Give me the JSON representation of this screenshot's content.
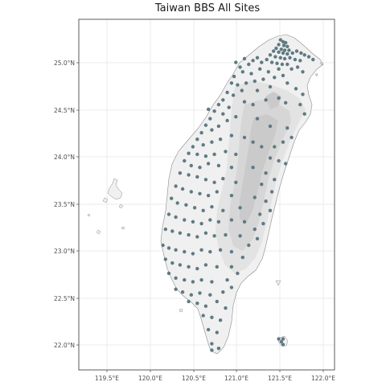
{
  "map": {
    "title": "Taiwan BBS All Sites",
    "x_tick_labels": [
      "119.5°E",
      "120.0°E",
      "120.5°E",
      "121.0°E",
      "121.5°E",
      "122.0°E"
    ],
    "y_tick_labels": [
      "25.0°N",
      "24.5°N",
      "24.0°N",
      "23.5°N",
      "23.0°N",
      "22.5°N",
      "22.0°N"
    ],
    "colors": {
      "panel_border": "#333333",
      "grid": "#ebebeb",
      "land": "#f0f0f0",
      "coast": "#8c8c8c",
      "elev_low": "#e3e3e3",
      "elev_mid": "#d6d6d6",
      "elev_high": "#cacaca",
      "site_points": "#5f7a83"
    }
  },
  "chart_data": {
    "type": "scatter",
    "title": "Taiwan BBS All Sites",
    "xlabel": "",
    "ylabel": "",
    "xlim": [
      119.17,
      122.15
    ],
    "ylim": [
      21.72,
      25.46
    ],
    "x_ticks": [
      119.5,
      120.0,
      120.5,
      121.0,
      121.5,
      122.0
    ],
    "y_ticks": [
      25.0,
      24.5,
      24.0,
      23.5,
      23.0,
      22.5,
      22.0
    ],
    "grid": true,
    "series": [
      {
        "points": [
          [
            121.52,
            25.24
          ],
          [
            121.55,
            25.22
          ],
          [
            121.58,
            25.21
          ],
          [
            121.5,
            25.19
          ],
          [
            121.56,
            25.18
          ],
          [
            121.6,
            25.17
          ],
          [
            121.47,
            25.15
          ],
          [
            121.53,
            25.14
          ],
          [
            121.57,
            25.13
          ],
          [
            121.62,
            25.13
          ],
          [
            121.44,
            25.12
          ],
          [
            121.5,
            25.11
          ],
          [
            121.55,
            25.1
          ],
          [
            121.6,
            25.09
          ],
          [
            121.66,
            25.1
          ],
          [
            121.71,
            25.12
          ],
          [
            121.76,
            25.1
          ],
          [
            121.8,
            25.08
          ],
          [
            121.85,
            25.06
          ],
          [
            121.9,
            25.03
          ],
          [
            121.4,
            25.08
          ],
          [
            121.46,
            25.06
          ],
          [
            121.52,
            25.05
          ],
          [
            121.57,
            25.04
          ],
          [
            121.63,
            25.05
          ],
          [
            121.69,
            25.03
          ],
          [
            121.75,
            25.02
          ],
          [
            121.36,
            25.03
          ],
          [
            121.42,
            25.0
          ],
          [
            121.48,
            24.99
          ],
          [
            121.54,
            24.98
          ],
          [
            121.6,
            24.98
          ],
          [
            121.3,
            25.0
          ],
          [
            121.25,
            25.05
          ],
          [
            121.2,
            25.02
          ],
          [
            121.15,
            24.98
          ],
          [
            121.1,
            25.04
          ],
          [
            121.05,
            24.95
          ],
          [
            121.0,
            25.0
          ],
          [
            121.65,
            24.93
          ],
          [
            121.72,
            24.95
          ],
          [
            121.78,
            24.9
          ],
          [
            121.5,
            24.93
          ],
          [
            121.38,
            24.9
          ],
          [
            121.28,
            24.93
          ],
          [
            121.18,
            24.88
          ],
          [
            121.08,
            24.9
          ],
          [
            120.98,
            24.85
          ],
          [
            121.55,
            24.86
          ],
          [
            121.45,
            24.84
          ],
          [
            121.32,
            24.82
          ],
          [
            121.22,
            24.8
          ],
          [
            121.12,
            24.78
          ],
          [
            121.02,
            24.76
          ],
          [
            120.95,
            24.78
          ],
          [
            120.9,
            24.68
          ],
          [
            120.85,
            24.6
          ],
          [
            120.97,
            24.65
          ],
          [
            121.07,
            24.7
          ],
          [
            121.25,
            24.7
          ],
          [
            121.4,
            24.74
          ],
          [
            121.6,
            24.78
          ],
          [
            121.7,
            24.72
          ],
          [
            121.78,
            24.66
          ],
          [
            121.75,
            24.55
          ],
          [
            121.8,
            24.45
          ],
          [
            120.8,
            24.55
          ],
          [
            120.75,
            24.48
          ],
          [
            120.7,
            24.4
          ],
          [
            120.68,
            24.5
          ],
          [
            120.85,
            24.45
          ],
          [
            120.92,
            24.52
          ],
          [
            121.1,
            24.58
          ],
          [
            121.2,
            24.55
          ],
          [
            121.35,
            24.6
          ],
          [
            121.5,
            24.62
          ],
          [
            121.58,
            24.57
          ],
          [
            120.65,
            24.33
          ],
          [
            120.72,
            24.28
          ],
          [
            120.8,
            24.32
          ],
          [
            120.9,
            24.38
          ],
          [
            121.0,
            24.42
          ],
          [
            121.25,
            24.4
          ],
          [
            121.4,
            24.32
          ],
          [
            121.6,
            24.3
          ],
          [
            121.65,
            24.2
          ],
          [
            121.55,
            24.15
          ],
          [
            121.45,
            24.1
          ],
          [
            120.6,
            24.25
          ],
          [
            120.55,
            24.18
          ],
          [
            120.5,
            24.1
          ],
          [
            120.62,
            24.12
          ],
          [
            120.72,
            24.15
          ],
          [
            120.82,
            24.18
          ],
          [
            120.95,
            24.22
          ],
          [
            121.1,
            24.2
          ],
          [
            121.2,
            24.15
          ],
          [
            121.3,
            24.1
          ],
          [
            120.45,
            24.03
          ],
          [
            120.55,
            24.02
          ],
          [
            120.65,
            24.0
          ],
          [
            120.75,
            24.02
          ],
          [
            120.88,
            24.05
          ],
          [
            121.0,
            24.02
          ],
          [
            121.4,
            23.98
          ],
          [
            121.5,
            23.95
          ],
          [
            121.58,
            23.92
          ],
          [
            120.4,
            23.95
          ],
          [
            120.48,
            23.9
          ],
          [
            120.58,
            23.88
          ],
          [
            120.68,
            23.92
          ],
          [
            120.8,
            23.9
          ],
          [
            120.95,
            23.88
          ],
          [
            121.2,
            23.88
          ],
          [
            121.35,
            23.82
          ],
          [
            121.45,
            23.75
          ],
          [
            120.35,
            23.82
          ],
          [
            120.45,
            23.8
          ],
          [
            120.55,
            23.78
          ],
          [
            120.65,
            23.75
          ],
          [
            120.75,
            23.72
          ],
          [
            120.85,
            23.76
          ],
          [
            121.0,
            23.72
          ],
          [
            121.3,
            23.7
          ],
          [
            121.42,
            23.62
          ],
          [
            120.3,
            23.68
          ],
          [
            120.38,
            23.65
          ],
          [
            120.48,
            23.62
          ],
          [
            120.58,
            23.6
          ],
          [
            120.68,
            23.58
          ],
          [
            120.78,
            23.62
          ],
          [
            120.95,
            23.58
          ],
          [
            121.22,
            23.56
          ],
          [
            121.35,
            23.52
          ],
          [
            121.4,
            23.42
          ],
          [
            120.25,
            23.55
          ],
          [
            120.32,
            23.5
          ],
          [
            120.42,
            23.48
          ],
          [
            120.52,
            23.45
          ],
          [
            120.62,
            23.42
          ],
          [
            120.72,
            23.46
          ],
          [
            120.85,
            23.42
          ],
          [
            121.05,
            23.45
          ],
          [
            121.28,
            23.38
          ],
          [
            121.32,
            23.28
          ],
          [
            120.22,
            23.38
          ],
          [
            120.3,
            23.35
          ],
          [
            120.4,
            23.32
          ],
          [
            120.5,
            23.3
          ],
          [
            120.6,
            23.28
          ],
          [
            120.7,
            23.32
          ],
          [
            120.8,
            23.3
          ],
          [
            120.95,
            23.32
          ],
          [
            121.1,
            23.3
          ],
          [
            121.22,
            23.22
          ],
          [
            121.25,
            23.12
          ],
          [
            120.18,
            23.22
          ],
          [
            120.26,
            23.2
          ],
          [
            120.35,
            23.18
          ],
          [
            120.45,
            23.16
          ],
          [
            120.55,
            23.14
          ],
          [
            120.65,
            23.18
          ],
          [
            120.75,
            23.15
          ],
          [
            120.88,
            23.16
          ],
          [
            121.05,
            23.15
          ],
          [
            121.15,
            23.05
          ],
          [
            120.15,
            23.05
          ],
          [
            120.22,
            23.02
          ],
          [
            120.3,
            23.0
          ],
          [
            120.4,
            22.98
          ],
          [
            120.5,
            22.96
          ],
          [
            120.6,
            23.0
          ],
          [
            120.7,
            22.98
          ],
          [
            120.82,
            23.0
          ],
          [
            120.95,
            22.98
          ],
          [
            121.08,
            22.92
          ],
          [
            120.18,
            22.9
          ],
          [
            120.26,
            22.86
          ],
          [
            120.35,
            22.84
          ],
          [
            120.45,
            22.82
          ],
          [
            120.55,
            22.8
          ],
          [
            120.65,
            22.84
          ],
          [
            120.78,
            22.82
          ],
          [
            120.95,
            22.82
          ],
          [
            121.02,
            22.75
          ],
          [
            120.22,
            22.75
          ],
          [
            120.3,
            22.7
          ],
          [
            120.4,
            22.68
          ],
          [
            120.5,
            22.66
          ],
          [
            120.6,
            22.68
          ],
          [
            120.72,
            22.66
          ],
          [
            120.9,
            22.68
          ],
          [
            120.95,
            22.6
          ],
          [
            120.3,
            22.58
          ],
          [
            120.38,
            22.55
          ],
          [
            120.48,
            22.52
          ],
          [
            120.58,
            22.54
          ],
          [
            120.7,
            22.52
          ],
          [
            120.85,
            22.55
          ],
          [
            120.45,
            22.45
          ],
          [
            120.55,
            22.43
          ],
          [
            120.65,
            22.4
          ],
          [
            120.78,
            22.45
          ],
          [
            120.88,
            22.38
          ],
          [
            120.62,
            22.3
          ],
          [
            120.72,
            22.28
          ],
          [
            120.82,
            22.25
          ],
          [
            120.68,
            22.15
          ],
          [
            120.78,
            22.12
          ],
          [
            120.72,
            22.0
          ],
          [
            120.8,
            21.95
          ],
          [
            120.72,
            21.93
          ],
          [
            121.5,
            22.05
          ],
          [
            121.53,
            22.02
          ],
          [
            121.55,
            21.99
          ],
          [
            121.55,
            22.05
          ]
        ]
      }
    ],
    "annotations": []
  }
}
